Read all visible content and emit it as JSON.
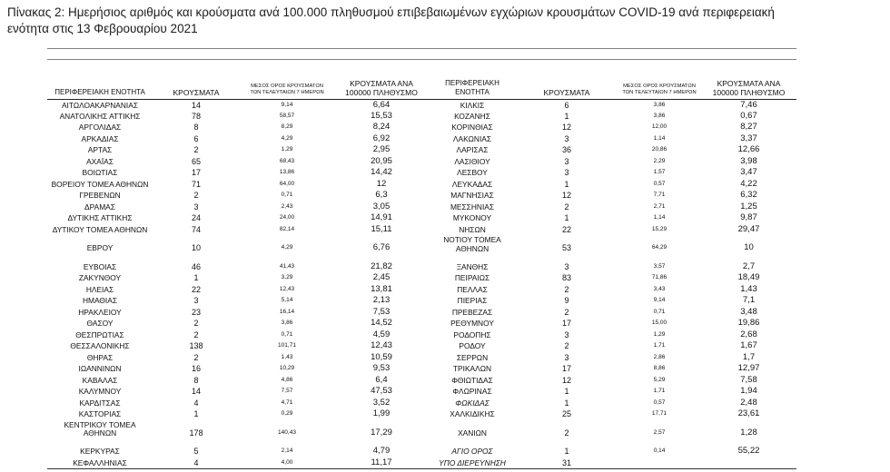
{
  "document": {
    "title_line1": "Πίνακας 2: Ημερήσιος αριθμός και κρούσματα ανά 100.000 πληθυσμού επιβεβαιωμένων εγχώριων κρουσμάτων COVID-19 ανά περιφερειακή",
    "title_line2": "ενότητα στις 13 Φεβρουαρίου 2021"
  },
  "table": {
    "headers": {
      "left": {
        "region": "ΠΕΡΙΦΕΡΕΙΑΚΗ ΕΝΟΤΗΤΑ",
        "cases": "ΚΡΟΥΣΜΑΤΑ",
        "avg_7day": "ΜΕΣΟΣ ΟΡΟΣ ΚΡΟΥΣΜΑΤΩΝ\nΤΩΝ ΤΕΛΕΥΤΑΙΩΝ 7 ΗΜΕΡΩΝ",
        "per_100k": "ΚΡΟΥΣΜΑΤΑ ΑΝΑ\n100000 ΠΛΗΘΥΣΜΟ"
      },
      "right": {
        "region": "ΠΕΡΙΦΕΡΕΙΑΚΗ\nΕΝΟΤΗΤΑ",
        "cases": "ΚΡΟΥΣΜΑΤΑ",
        "avg_7day": "ΜΕΣΟΣ ΟΡΟΣ ΚΡΟΥΣΜΑΤΩΝ\nΤΩΝ ΤΕΛΕΥΤΑΙΩΝ 7 ΗΜΕΡΩΝ",
        "per_100k": "ΚΡΟΥΣΜΑΤΑ ΑΝΑ\n100000 ΠΛΗΘΥΣΜΟ"
      }
    },
    "rows": [
      {
        "left": {
          "region": "ΑΙΤΩΛΟΑΚΑΡΝΑΝΙΑΣ",
          "cases": "14",
          "avg_7day": "9,14",
          "per_100k": "6,64"
        },
        "right": {
          "region": "ΚΙΛΚΙΣ",
          "cases": "6",
          "avg_7day": "3,86",
          "per_100k": "7,46"
        }
      },
      {
        "left": {
          "region": "ΑΝΑΤΟΛΙΚΗΣ ΑΤΤΙΚΗΣ",
          "cases": "78",
          "avg_7day": "58,57",
          "per_100k": "15,53"
        },
        "right": {
          "region": "ΚΟΖΑΝΗΣ",
          "cases": "1",
          "avg_7day": "3,86",
          "per_100k": "0,67"
        }
      },
      {
        "left": {
          "region": "ΑΡΓΟΛΙΔΑΣ",
          "cases": "8",
          "avg_7day": "8,29",
          "per_100k": "8,24"
        },
        "right": {
          "region": "ΚΟΡΙΝΘΙΑΣ",
          "cases": "12",
          "avg_7day": "12,00",
          "per_100k": "8,27"
        }
      },
      {
        "left": {
          "region": "ΑΡΚΑΔΙΑΣ",
          "cases": "6",
          "avg_7day": "4,29",
          "per_100k": "6,92"
        },
        "right": {
          "region": "ΛΑΚΩΝΙΑΣ",
          "cases": "3",
          "avg_7day": "1,14",
          "per_100k": "3,37"
        }
      },
      {
        "left": {
          "region": "ΑΡΤΑΣ",
          "cases": "2",
          "avg_7day": "1,29",
          "per_100k": "2,95"
        },
        "right": {
          "region": "ΛΑΡΙΣΑΣ",
          "cases": "36",
          "avg_7day": "20,86",
          "per_100k": "12,66"
        }
      },
      {
        "left": {
          "region": "ΑΧΑΪΑΣ",
          "cases": "65",
          "avg_7day": "68,43",
          "per_100k": "20,95"
        },
        "right": {
          "region": "ΛΑΣΙΘΙΟΥ",
          "cases": "3",
          "avg_7day": "2,29",
          "per_100k": "3,98"
        }
      },
      {
        "left": {
          "region": "ΒΟΙΩΤΙΑΣ",
          "cases": "17",
          "avg_7day": "13,86",
          "per_100k": "14,42"
        },
        "right": {
          "region": "ΛΕΣΒΟΥ",
          "cases": "3",
          "avg_7day": "1,57",
          "per_100k": "3,47"
        }
      },
      {
        "left": {
          "region": "ΒΟΡΕΙΟΥ ΤΟΜΕΑ ΑΘΗΝΩΝ",
          "cases": "71",
          "avg_7day": "64,00",
          "per_100k": "12"
        },
        "right": {
          "region": "ΛΕΥΚΑΔΑΣ",
          "cases": "1",
          "avg_7day": "0,57",
          "per_100k": "4,22"
        }
      },
      {
        "left": {
          "region": "ΓΡΕΒΕΝΩΝ",
          "cases": "2",
          "avg_7day": "0,71",
          "per_100k": "6,3"
        },
        "right": {
          "region": "ΜΑΓΝΗΣΙΑΣ",
          "cases": "12",
          "avg_7day": "7,71",
          "per_100k": "6,32"
        }
      },
      {
        "left": {
          "region": "ΔΡΑΜΑΣ",
          "cases": "3",
          "avg_7day": "2,43",
          "per_100k": "3,05"
        },
        "right": {
          "region": "ΜΕΣΣΗΝΙΑΣ",
          "cases": "2",
          "avg_7day": "2,71",
          "per_100k": "1,25"
        }
      },
      {
        "left": {
          "region": "ΔΥΤΙΚΗΣ ΑΤΤΙΚΗΣ",
          "cases": "24",
          "avg_7day": "24,00",
          "per_100k": "14,91"
        },
        "right": {
          "region": "ΜΥΚΟΝΟΥ",
          "cases": "1",
          "avg_7day": "1,14",
          "per_100k": "9,87"
        }
      },
      {
        "left": {
          "region": "ΔΥΤΙΚΟΥ ΤΟΜΕΑ ΑΘΗΝΩΝ",
          "cases": "74",
          "avg_7day": "82,14",
          "per_100k": "15,11"
        },
        "right": {
          "region": "ΝΗΣΩΝ",
          "cases": "22",
          "avg_7day": "15,29",
          "per_100k": "29,47"
        }
      },
      {
        "left": {
          "region": "ΕΒΡΟΥ",
          "cases": "10",
          "avg_7day": "4,29",
          "per_100k": "6,76"
        },
        "right": {
          "region": "ΝΟΤΙΟΥ ΤΟΜΕΑ\nΑΘΗΝΩΝ",
          "cases": "53",
          "avg_7day": "64,29",
          "per_100k": "10"
        }
      },
      {
        "left": {
          "region": "ΕΥΒΟΙΑΣ",
          "cases": "46",
          "avg_7day": "41,43",
          "per_100k": "21,82"
        },
        "right": {
          "region": "ΞΑΝΘΗΣ",
          "cases": "3",
          "avg_7day": "3,57",
          "per_100k": "2,7"
        }
      },
      {
        "left": {
          "region": "ΖΑΚΥΝΘΟΥ",
          "cases": "1",
          "avg_7day": "3,29",
          "per_100k": "2,45"
        },
        "right": {
          "region": "ΠΕΙΡΑΙΩΣ",
          "cases": "83",
          "avg_7day": "71,86",
          "per_100k": "18,49"
        }
      },
      {
        "left": {
          "region": "ΗΛΕΙΑΣ",
          "cases": "22",
          "avg_7day": "12,43",
          "per_100k": "13,81"
        },
        "right": {
          "region": "ΠΕΛΛΑΣ",
          "cases": "2",
          "avg_7day": "3,43",
          "per_100k": "1,43"
        }
      },
      {
        "left": {
          "region": "ΗΜΑΘΙΑΣ",
          "cases": "3",
          "avg_7day": "5,14",
          "per_100k": "2,13"
        },
        "right": {
          "region": "ΠΙΕΡΙΑΣ",
          "cases": "9",
          "avg_7day": "9,14",
          "per_100k": "7,1"
        }
      },
      {
        "left": {
          "region": "ΗΡΑΚΛΕΙΟΥ",
          "cases": "23",
          "avg_7day": "16,14",
          "per_100k": "7,53"
        },
        "right": {
          "region": "ΠΡΕΒΕΖΑΣ",
          "cases": "2",
          "avg_7day": "0,71",
          "per_100k": "3,48"
        }
      },
      {
        "left": {
          "region": "ΘΑΣΟΥ",
          "cases": "2",
          "avg_7day": "3,86",
          "per_100k": "14,52"
        },
        "right": {
          "region": "ΡΕΘΥΜΝΟΥ",
          "cases": "17",
          "avg_7day": "15,00",
          "per_100k": "19,86"
        }
      },
      {
        "left": {
          "region": "ΘΕΣΠΡΩΤΙΑΣ",
          "cases": "2",
          "avg_7day": "0,71",
          "per_100k": "4,59"
        },
        "right": {
          "region": "ΡΟΔΟΠΗΣ",
          "cases": "3",
          "avg_7day": "1,29",
          "per_100k": "2,68"
        }
      },
      {
        "left": {
          "region": "ΘΕΣΣΑΛΟΝΙΚΗΣ",
          "cases": "138",
          "avg_7day": "101,71",
          "per_100k": "12,43"
        },
        "right": {
          "region": "ΡΟΔΟΥ",
          "cases": "2",
          "avg_7day": "1,71",
          "per_100k": "1,67"
        }
      },
      {
        "left": {
          "region": "ΘΗΡΑΣ",
          "cases": "2",
          "avg_7day": "1,43",
          "per_100k": "10,59"
        },
        "right": {
          "region": "ΣΕΡΡΩΝ",
          "cases": "3",
          "avg_7day": "2,86",
          "per_100k": "1,7"
        }
      },
      {
        "left": {
          "region": "ΙΩΑΝΝΙΝΩΝ",
          "cases": "16",
          "avg_7day": "10,29",
          "per_100k": "9,53"
        },
        "right": {
          "region": "ΤΡΙΚΑΛΩΝ",
          "cases": "17",
          "avg_7day": "8,86",
          "per_100k": "12,97"
        }
      },
      {
        "left": {
          "region": "ΚΑΒΑΛΑΣ",
          "cases": "8",
          "avg_7day": "4,86",
          "per_100k": "6,4"
        },
        "right": {
          "region": "ΦΘΙΩΤΙΔΑΣ",
          "cases": "12",
          "avg_7day": "5,29",
          "per_100k": "7,58"
        }
      },
      {
        "left": {
          "region": "ΚΑΛΥΜΝΟΥ",
          "cases": "14",
          "avg_7day": "7,57",
          "per_100k": "47,53"
        },
        "right": {
          "region": "ΦΛΩΡΙΝΑΣ",
          "cases": "1",
          "avg_7day": "1,71",
          "per_100k": "1,94"
        }
      },
      {
        "left": {
          "region": "ΚΑΡΔΙΤΣΑΣ",
          "cases": "4",
          "avg_7day": "4,71",
          "per_100k": "3,52"
        },
        "right": {
          "region": "ΦΩΚΙΔΑΣ",
          "cases": "1",
          "avg_7day": "0,57",
          "per_100k": "2,48",
          "italic": true
        }
      },
      {
        "left": {
          "region": "ΚΑΣΤΟΡΙΑΣ",
          "cases": "1",
          "avg_7day": "0,29",
          "per_100k": "1,99"
        },
        "right": {
          "region": "ΧΑΛΚΙΔΙΚΗΣ",
          "cases": "25",
          "avg_7day": "17,71",
          "per_100k": "23,61"
        }
      },
      {
        "left": {
          "region": "ΚΕΝΤΡΙΚΟΥ ΤΟΜΕΑ\nΑΘΗΝΩΝ",
          "cases": "178",
          "avg_7day": "140,43",
          "per_100k": "17,29"
        },
        "right": {
          "region": "ΧΑΝΙΩΝ",
          "cases": "2",
          "avg_7day": "2,57",
          "per_100k": "1,28"
        }
      },
      {
        "left": {
          "region": "ΚΕΡΚΥΡΑΣ",
          "cases": "5",
          "avg_7day": "2,14",
          "per_100k": "4,79"
        },
        "right": {
          "region": "ΑΓΙΟ ΟΡΟΣ",
          "cases": "1",
          "avg_7day": "0,14",
          "per_100k": "55,22",
          "italic": true
        }
      },
      {
        "left": {
          "region": "ΚΕΦΑΛΛΗΝΙΑΣ",
          "cases": "4",
          "avg_7day": "4,00",
          "per_100k": "11,17"
        },
        "right": {
          "region": "ΥΠΟ ΔΙΕΡΕΥΝΗΣΗ",
          "cases": "31",
          "italic": true
        }
      }
    ]
  }
}
